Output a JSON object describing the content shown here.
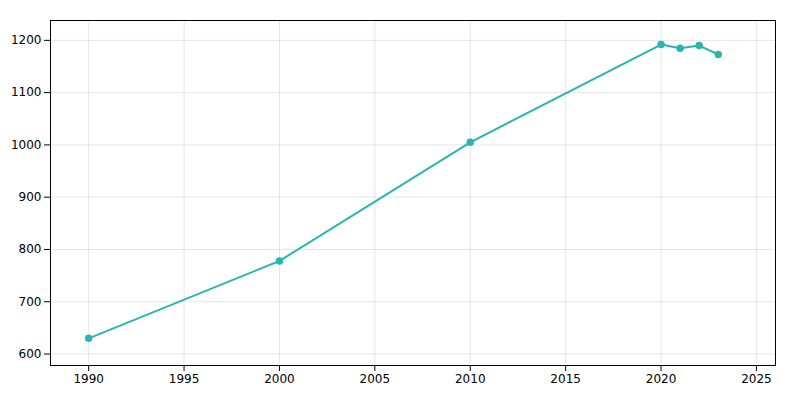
{
  "chart_data": {
    "type": "line",
    "x": [
      1990,
      2000,
      2010,
      2020,
      2021,
      2022,
      2023
    ],
    "values": [
      630,
      778,
      1005,
      1192,
      1185,
      1190,
      1173
    ],
    "color": "#2ab5b0",
    "marker": "circle",
    "xlim": [
      1988,
      2026
    ],
    "ylim": [
      578,
      1238
    ],
    "xticks": [
      1990,
      1995,
      2000,
      2005,
      2010,
      2015,
      2020,
      2025
    ],
    "yticks": [
      600,
      700,
      800,
      900,
      1000,
      1100,
      1200
    ],
    "grid": true
  }
}
